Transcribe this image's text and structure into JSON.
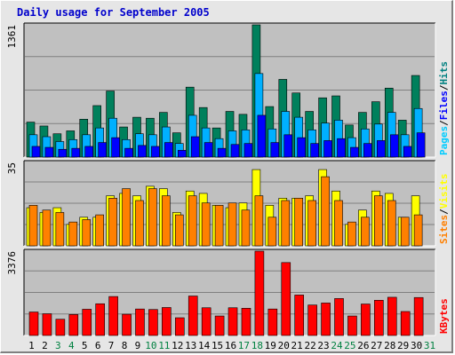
{
  "chart_data": {
    "title": "Daily usage for September 2005",
    "type": "bar",
    "categories": [
      "1",
      "2",
      "3",
      "4",
      "5",
      "6",
      "7",
      "8",
      "9",
      "10",
      "11",
      "12",
      "13",
      "14",
      "15",
      "16",
      "17",
      "18",
      "19",
      "20",
      "21",
      "22",
      "23",
      "24",
      "25",
      "26",
      "27",
      "28",
      "29",
      "30",
      "31"
    ],
    "weekend_categories": [
      "3",
      "4",
      "10",
      "11",
      "17",
      "18",
      "24",
      "25",
      "31"
    ],
    "panels": [
      {
        "name": "hits-files-pages",
        "ymax_label": "1361",
        "ylim": [
          0,
          1361
        ],
        "legend": [
          "Pages",
          "/",
          "Files",
          "/",
          "Hits"
        ],
        "legend_colors": [
          "#00ccff",
          "#000000",
          "#0000ff",
          "#000000",
          "#008080"
        ],
        "series": [
          {
            "name": "Hits",
            "color": "#00805c",
            "values": [
              360,
              320,
              240,
              270,
              390,
              530,
              680,
              310,
              410,
              400,
              460,
              250,
              720,
              510,
              300,
              470,
              440,
              1361,
              520,
              800,
              660,
              470,
              610,
              630,
              330,
              460,
              570,
              710,
              380,
              840,
              null
            ]
          },
          {
            "name": "Files",
            "color": "#00b0ff",
            "values": [
              230,
              210,
              160,
              180,
              230,
              300,
              400,
              180,
              240,
              230,
              310,
              140,
              430,
              300,
              190,
              270,
              280,
              860,
              290,
              470,
              410,
              280,
              350,
              380,
              200,
              290,
              340,
              460,
              230,
              500,
              null
            ]
          },
          {
            "name": "Pages",
            "color": "#0000ff",
            "values": [
              110,
              100,
              80,
              90,
              110,
              150,
              200,
              90,
              120,
              110,
              150,
              70,
              210,
              150,
              90,
              130,
              140,
              430,
              150,
              230,
              200,
              140,
              170,
              190,
              100,
              140,
              170,
              230,
              110,
              250,
              null
            ]
          }
        ]
      },
      {
        "name": "visits-sites",
        "ymax_label": "35",
        "ylim": [
          0,
          35
        ],
        "legend": [
          "Sites",
          "/",
          "Visits"
        ],
        "legend_colors": [
          "#ff8000",
          "#000000",
          "#ffff00"
        ],
        "series": [
          {
            "name": "Visits",
            "color": "#ffff00",
            "values": [
              16,
              14,
              16,
              9,
              12,
              12,
              21,
              22,
              21,
              25,
              24,
              14,
              23,
              22,
              17,
              16,
              18,
              32,
              17,
              20,
              20,
              21,
              32,
              23,
              9,
              15,
              23,
              22,
              12,
              21,
              null
            ]
          },
          {
            "name": "Sites",
            "color": "#ff8000",
            "values": [
              17,
              15,
              14,
              10,
              11,
              13,
              20,
              24,
              19,
              24,
              21,
              13,
              21,
              18,
              17,
              18,
              15,
              21,
              12,
              19,
              20,
              19,
              29,
              19,
              10,
              12,
              21,
              19,
              12,
              13,
              null
            ]
          }
        ]
      },
      {
        "name": "kbytes",
        "ymax_label": "3376",
        "ylim": [
          0,
          3376
        ],
        "legend": [
          "KBytes"
        ],
        "legend_colors": [
          "#ff0000"
        ],
        "series": [
          {
            "name": "KBytes",
            "color": "#ff0000",
            "values": [
              940,
              870,
              650,
              840,
              1050,
              1270,
              1560,
              850,
              1060,
              1040,
              1120,
              710,
              1580,
              1110,
              780,
              1110,
              1090,
              3376,
              1060,
              2920,
              1620,
              1220,
              1300,
              1480,
              780,
              1260,
              1410,
              1530,
              960,
              1520,
              null
            ]
          }
        ]
      }
    ]
  }
}
